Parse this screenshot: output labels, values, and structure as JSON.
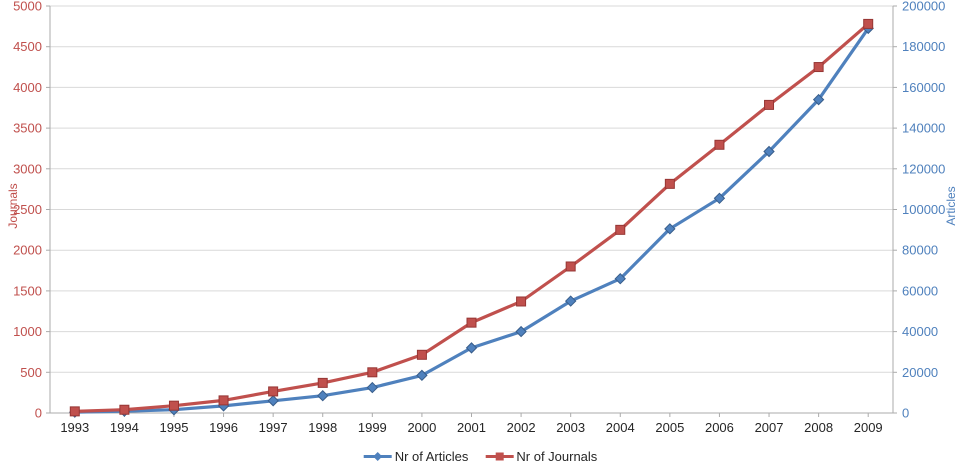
{
  "chart_data": {
    "type": "line",
    "title": "",
    "x": [
      1993,
      1994,
      1995,
      1996,
      1997,
      1998,
      1999,
      2000,
      2001,
      2002,
      2003,
      2004,
      2005,
      2006,
      2007,
      2008,
      2009
    ],
    "series": [
      {
        "name": "Nr of Articles",
        "axis": "right",
        "color": "#4F81BD",
        "marker": "diamond",
        "marker_outline": "#385D8A",
        "values": [
          400,
          900,
          1600,
          3500,
          6000,
          8500,
          12500,
          18500,
          32000,
          40000,
          55000,
          66000,
          90500,
          105500,
          128500,
          154000,
          189000
        ]
      },
      {
        "name": "Nr of Journals",
        "axis": "left",
        "color": "#C0504D",
        "marker": "square",
        "marker_outline": "#963634",
        "values": [
          20,
          40,
          90,
          155,
          265,
          370,
          500,
          715,
          1110,
          1370,
          1800,
          2250,
          2815,
          3295,
          3785,
          4250,
          4780
        ]
      }
    ],
    "left_axis": {
      "label": "Journals",
      "min": 0,
      "max": 5000,
      "step": 500,
      "color": "#C0504D"
    },
    "right_axis": {
      "label": "Articles",
      "min": 0,
      "max": 200000,
      "step": 20000,
      "color": "#4F81BD"
    },
    "grid": true,
    "legend_position": "bottom"
  },
  "style_colors": {
    "gridline": "#D9D9D9",
    "axis_line": "#ABABAB",
    "x_label_text": "#262626"
  }
}
